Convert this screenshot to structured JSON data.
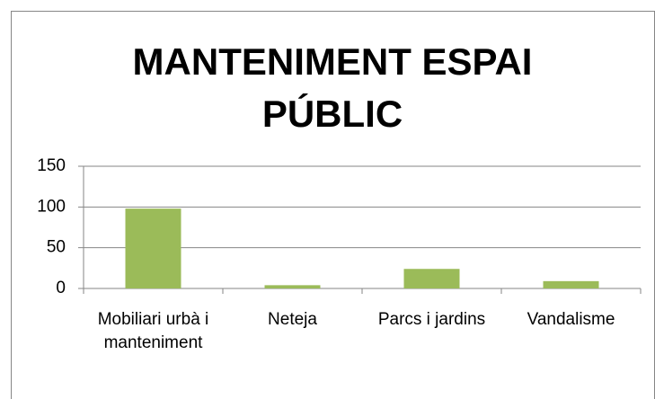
{
  "chart_data": {
    "type": "bar",
    "title": "MANTENIMENT ESPAI PÚBLIC",
    "categories": [
      "Mobiliari urbà i manteniment",
      "Neteja",
      "Parcs i jardins",
      "Vandalisme"
    ],
    "values": [
      98,
      4,
      24,
      9
    ],
    "color": "#9bbb59",
    "ylim": [
      0,
      150
    ],
    "yticks": [
      0,
      50,
      100,
      150
    ],
    "grid": true
  }
}
